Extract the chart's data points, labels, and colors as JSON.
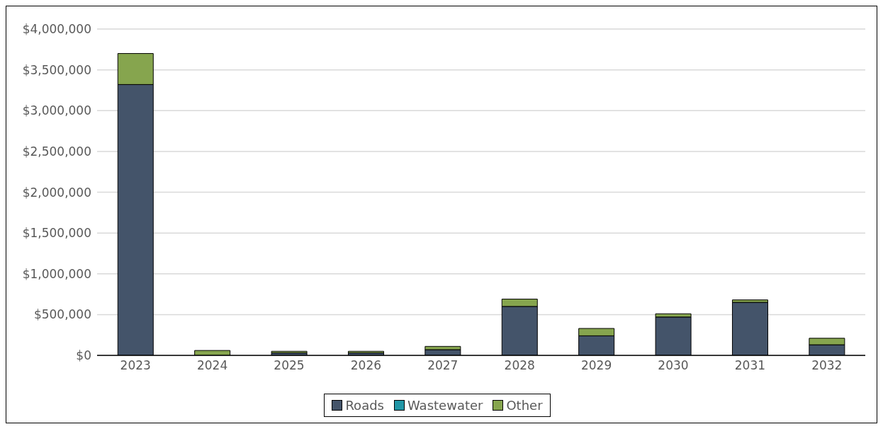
{
  "chart_data": {
    "type": "bar",
    "stacked": true,
    "categories": [
      "2023",
      "2024",
      "2025",
      "2026",
      "2027",
      "2028",
      "2029",
      "2030",
      "2031",
      "2032"
    ],
    "series": [
      {
        "name": "Roads",
        "color": "#44546a",
        "values": [
          3320000,
          0,
          30000,
          30000,
          70000,
          600000,
          240000,
          470000,
          650000,
          130000
        ]
      },
      {
        "name": "Wastewater",
        "color": "#2196a6",
        "values": [
          0,
          0,
          0,
          0,
          0,
          0,
          0,
          0,
          0,
          0
        ]
      },
      {
        "name": "Other",
        "color": "#86a54e",
        "values": [
          380000,
          60000,
          20000,
          20000,
          40000,
          90000,
          90000,
          40000,
          30000,
          80000
        ]
      }
    ],
    "ylim": [
      0,
      4000000
    ],
    "yticks": [
      {
        "value": 0,
        "label": "$0"
      },
      {
        "value": 500000,
        "label": "$500,000"
      },
      {
        "value": 1000000,
        "label": "$1,000,000"
      },
      {
        "value": 1500000,
        "label": "$1,500,000"
      },
      {
        "value": 2000000,
        "label": "$2,000,000"
      },
      {
        "value": 2500000,
        "label": "$2,500,000"
      },
      {
        "value": 3000000,
        "label": "$3,000,000"
      },
      {
        "value": 3500000,
        "label": "$3,500,000"
      },
      {
        "value": 4000000,
        "label": "$4,000,000"
      }
    ],
    "grid": "y",
    "legend": "bottom"
  }
}
